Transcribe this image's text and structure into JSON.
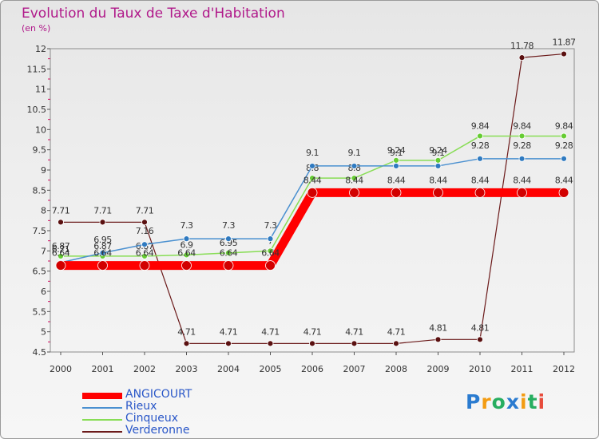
{
  "chart_data": {
    "type": "line",
    "title": "Evolution du Taux de Taxe d'Habitation",
    "subtitle": "(en %)",
    "x": [
      "2000",
      "2001",
      "2002",
      "2003",
      "2004",
      "2005",
      "2006",
      "2007",
      "2008",
      "2009",
      "2010",
      "2011",
      "2012"
    ],
    "ylim": [
      4.5,
      12
    ],
    "yticks": [
      "4.5",
      "5",
      "5.5",
      "6",
      "6.5",
      "7",
      "7.5",
      "8",
      "8.5",
      "9",
      "9.5",
      "10",
      "10.5",
      "11",
      "11.5",
      "12"
    ],
    "grid": false,
    "legend_position": "bottom-left",
    "series": [
      {
        "name": "Verderonne",
        "color": "#6b1a1a",
        "marker": "#5a1010",
        "width": 1.2,
        "radius": 3.5,
        "labelAbove": 11,
        "values": [
          7.71,
          7.71,
          7.71,
          4.71,
          4.71,
          4.71,
          4.71,
          4.71,
          4.71,
          4.81,
          4.81,
          11.78,
          11.87
        ],
        "labels": [
          "7.71",
          "7.71",
          "7.71",
          "4.71",
          "4.71",
          "4.71",
          "4.71",
          "4.71",
          "4.71",
          "4.81",
          "4.81",
          "11.78",
          "11.87"
        ]
      },
      {
        "name": "Cinqueux",
        "color": "#88dd55",
        "marker": "#66cc33",
        "width": 1.5,
        "radius": 3.5,
        "labelAbove": 9,
        "values": [
          6.87,
          6.87,
          6.87,
          6.9,
          6.95,
          7.0,
          8.8,
          8.8,
          9.24,
          9.24,
          9.84,
          9.84,
          9.84
        ],
        "labels": [
          "6.87",
          "6.87",
          "6.87",
          "6.9",
          "6.95",
          "7",
          "8.8",
          "8.8",
          "9.24",
          "9.24",
          "9.84",
          "9.84",
          "9.84"
        ]
      },
      {
        "name": "Rieux",
        "color": "#4a90d0",
        "marker": "#2f7ac0",
        "width": 1.5,
        "radius": 3.5,
        "labelAbove": 13,
        "values": [
          6.71,
          6.95,
          7.16,
          7.3,
          7.3,
          7.3,
          9.1,
          9.1,
          9.1,
          9.1,
          9.28,
          9.28,
          9.28
        ],
        "labels": [
          "6.71",
          "6.95",
          "7.16",
          "7.3",
          "7.3",
          "7.3",
          "9.1",
          "9.1",
          "9.1",
          "9.1",
          "9.28",
          "9.28",
          "9.28"
        ]
      },
      {
        "name": "ANGICOURT",
        "color": "#ff0000",
        "marker": "#d20000",
        "width": 11,
        "radius": 6,
        "labelAbove": 12,
        "values": [
          6.64,
          6.64,
          6.64,
          6.64,
          6.64,
          6.64,
          8.44,
          8.44,
          8.44,
          8.44,
          8.44,
          8.44,
          8.44
        ],
        "labels": [
          "6.64",
          "6.64",
          "6.64",
          "6.64",
          "6.64",
          "6.64",
          "8.44",
          "8.44",
          "8.44",
          "8.44",
          "8.44",
          "8.44",
          "8.44"
        ]
      }
    ]
  },
  "legend": [
    {
      "name": "ANGICOURT",
      "color": "#ff0000"
    },
    {
      "name": "Rieux",
      "color": "#4a90d0"
    },
    {
      "name": "Cinqueux",
      "color": "#88dd55"
    },
    {
      "name": "Verderonne",
      "color": "#6b1a1a"
    }
  ],
  "logo": {
    "text": "Proxiti",
    "letters": [
      "P",
      "r",
      "o",
      "x",
      "i",
      "t",
      "i"
    ],
    "colors": [
      "#2a7bd0",
      "#f39c12",
      "#27ae60",
      "#2a7bd0",
      "#f39c12",
      "#27ae60",
      "#e74c3c"
    ]
  }
}
